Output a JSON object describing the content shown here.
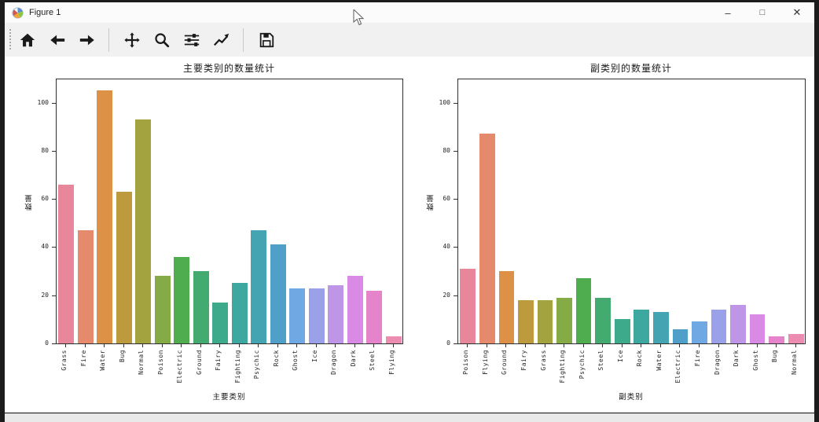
{
  "window": {
    "title": "Figure 1",
    "controls": {
      "minimize": "–",
      "maximize": "□",
      "close": "✕"
    }
  },
  "toolbar": {
    "items": [
      {
        "icon": "home-icon"
      },
      {
        "icon": "back-arrow-icon"
      },
      {
        "icon": "forward-arrow-icon"
      },
      {
        "icon": "pan-move-icon"
      },
      {
        "icon": "zoom-magnifier-icon"
      },
      {
        "icon": "subplot-sliders-icon"
      },
      {
        "icon": "customize-axes-icon"
      },
      {
        "icon": "save-floppy-icon"
      }
    ]
  },
  "palette": [
    "#e8879c",
    "#e68a6e",
    "#dd9147",
    "#bc9a3d",
    "#a3a440",
    "#84ab46",
    "#4fac4f",
    "#43ab70",
    "#3eaa8c",
    "#3da8a0",
    "#45a4b2",
    "#4f9fc9",
    "#6fa8e2",
    "#9aa1e8",
    "#bf96e7",
    "#d98ae4",
    "#e583cb",
    "#ec8cb0"
  ],
  "chart_data": [
    {
      "type": "bar",
      "title": "主要类别的数量统计",
      "xlabel": "主要类别",
      "ylabel": "数量",
      "categories": [
        "Grass",
        "Fire",
        "Water",
        "Bug",
        "Normal",
        "Poison",
        "Electric",
        "Ground",
        "Fairy",
        "Fighting",
        "Psychic",
        "Rock",
        "Ghost",
        "Ice",
        "Dragon",
        "Dark",
        "Steel",
        "Flying"
      ],
      "values": [
        66,
        47,
        105,
        63,
        93,
        28,
        36,
        30,
        17,
        25,
        47,
        41,
        23,
        23,
        24,
        28,
        22,
        3
      ],
      "yticks": [
        0,
        20,
        40,
        60,
        80,
        100
      ],
      "ylim": [
        0,
        110
      ],
      "grid": false,
      "legend": null
    },
    {
      "type": "bar",
      "title": "副类别的数量统计",
      "xlabel": "副类别",
      "ylabel": "数量",
      "categories": [
        "Poison",
        "Flying",
        "Ground",
        "Fairy",
        "Grass",
        "Fighting",
        "Psychic",
        "Steel",
        "Ice",
        "Rock",
        "Water",
        "Electric",
        "Fire",
        "Dragon",
        "Dark",
        "Ghost",
        "Bug",
        "Normal"
      ],
      "values": [
        31,
        87,
        30,
        18,
        18,
        19,
        27,
        19,
        10,
        14,
        13,
        6,
        9,
        14,
        16,
        12,
        3,
        4
      ],
      "yticks": [
        0,
        20,
        40,
        60,
        80,
        100
      ],
      "ylim": [
        0,
        110
      ],
      "grid": false,
      "legend": null
    }
  ]
}
